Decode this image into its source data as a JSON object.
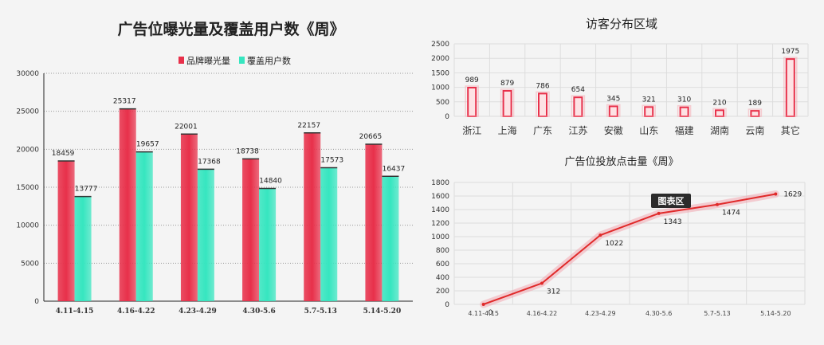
{
  "chart_data": [
    {
      "type": "bar",
      "title": "广告位曝光量及覆盖用户数《周》",
      "categories": [
        "4.11-4.15",
        "4.16-4.22",
        "4.23-4.29",
        "4.30-5.6",
        "5.7-5.13",
        "5.14-5.20"
      ],
      "series": [
        {
          "name": "品牌曝光量",
          "values": [
            18459,
            25317,
            22001,
            18738,
            22157,
            20665
          ],
          "color": "#e8304a"
        },
        {
          "name": "覆盖用户数",
          "values": [
            13777,
            19657,
            17368,
            14840,
            17573,
            16437
          ],
          "color": "#36e6c0"
        }
      ],
      "yticks": [
        "0",
        "5000",
        "10000",
        "15000",
        "20000",
        "25000",
        "30000"
      ],
      "ylim": [
        0,
        30000
      ],
      "legend": "top"
    },
    {
      "type": "bar",
      "title": "访客分布区域",
      "categories": [
        "浙江",
        "上海",
        "广东",
        "江苏",
        "安徽",
        "山东",
        "福建",
        "湖南",
        "云南",
        "其它"
      ],
      "values": [
        989,
        879,
        786,
        654,
        345,
        321,
        310,
        210,
        189,
        1975
      ],
      "yticks": [
        "0",
        "500",
        "1000",
        "1500",
        "2000",
        "2500"
      ],
      "ylim": [
        0,
        2500
      ],
      "color": "#e8304a"
    },
    {
      "type": "line",
      "title": "广告位投放点击量《周》",
      "categories": [
        "4.11-4.15",
        "4.16-4.22",
        "4.23-4.29",
        "4.30-5.6",
        "5.7-5.13",
        "5.14-5.20"
      ],
      "values": [
        0,
        312,
        1022,
        1343,
        1474,
        1629
      ],
      "yticks": [
        "0",
        "200",
        "400",
        "600",
        "800",
        "1000",
        "1200",
        "1400",
        "1600",
        "1800"
      ],
      "ylim": [
        0,
        1800
      ],
      "color": "#e02a2a",
      "badge": "图表区"
    }
  ]
}
